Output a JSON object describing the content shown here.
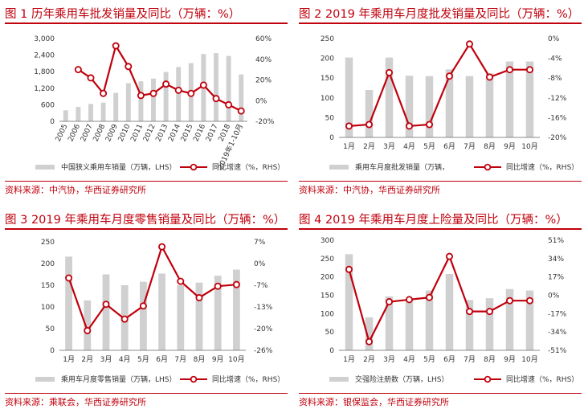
{
  "colors": {
    "accent": "#c0000c",
    "bar": "#d0d0d0",
    "line": "#c0000c",
    "text": "#333333"
  },
  "chart_data": [
    {
      "type": "bar",
      "title": "图 1 历年乘用车批发销量及同比（万辆：%）",
      "source": "资料来源：中汽协，华西证券研究所",
      "categories": [
        "2005",
        "2006",
        "2007",
        "2008",
        "2009",
        "2010",
        "2011",
        "2012",
        "2013",
        "2014",
        "2015",
        "2016",
        "2017",
        "2018",
        "2019年1-10月"
      ],
      "y_left": {
        "min": 0,
        "max": 3000,
        "ticks": [
          "0",
          "600",
          "1,200",
          "1,800",
          "2,400",
          "3,000"
        ]
      },
      "y_right": {
        "min": -20,
        "max": 60,
        "ticks": [
          "-20%",
          "0%",
          "20%",
          "40%",
          "60%"
        ]
      },
      "series": [
        {
          "name": "中国狭义乘用车销量（万辆，LHS）",
          "kind": "bar",
          "axis": "left",
          "values": [
            400,
            520,
            630,
            680,
            1030,
            1380,
            1450,
            1550,
            1790,
            1970,
            2110,
            2440,
            2470,
            2370,
            1700
          ]
        },
        {
          "name": "同比增速（%，RHS）",
          "kind": "line",
          "axis": "right",
          "values": [
            null,
            30,
            22,
            7,
            53,
            33,
            5,
            7,
            16,
            10,
            7,
            15,
            2,
            -4,
            -10
          ]
        }
      ]
    },
    {
      "type": "bar",
      "title": "图 2 2019 年乘用车月度批发销量及同比（万辆：%）",
      "source": "资料来源：中汽协，华西证券研究所",
      "categories": [
        "1月",
        "2月",
        "3月",
        "4月",
        "5月",
        "6月",
        "7月",
        "8月",
        "9月",
        "10月"
      ],
      "y_left": {
        "min": 0,
        "max": 250,
        "ticks": [
          "0",
          "50",
          "100",
          "150",
          "200",
          "250"
        ]
      },
      "y_right": {
        "min": -20,
        "max": 0,
        "ticks": [
          "-20%",
          "-16%",
          "-12%",
          "-8%",
          "-4%",
          "0%"
        ]
      },
      "series": [
        {
          "name": "乘用车月度批发销量（万辆，",
          "kind": "bar",
          "axis": "left",
          "values": [
            202,
            120,
            202,
            156,
            155,
            172,
            155,
            162,
            192,
            192
          ]
        },
        {
          "name": "同比增速（%，RHS）",
          "kind": "line",
          "axis": "right",
          "values": [
            -17.7,
            -17.4,
            -6.9,
            -17.7,
            -17.4,
            -7.6,
            -1.1,
            -7.8,
            -6.3,
            -6.3
          ]
        }
      ]
    },
    {
      "type": "bar",
      "title": "图 3 2019 年乘用车月度零售销量及同比（万辆：%）",
      "source": "资料来源：乘联会，华西证券研究所",
      "categories": [
        "1月",
        "2月",
        "3月",
        "4月",
        "5月",
        "6月",
        "7月",
        "8月",
        "9月",
        "10月"
      ],
      "y_left": {
        "min": 0,
        "max": 250,
        "ticks": [
          "0",
          "50",
          "100",
          "150",
          "200",
          "250"
        ]
      },
      "y_right": {
        "min": -26,
        "max": 7,
        "ticks": [
          "-26%",
          "-20%",
          "-13%",
          "-7%",
          "0%",
          "7%"
        ]
      },
      "series": [
        {
          "name": "乘用车月度零售销量（万辆，LHS）",
          "kind": "bar",
          "axis": "left",
          "values": [
            216,
            115,
            175,
            150,
            158,
            177,
            150,
            156,
            172,
            186
          ]
        },
        {
          "name": "同比增速（%，RHS）",
          "kind": "line",
          "axis": "right",
          "values": [
            -4,
            -20,
            -12,
            -16.5,
            -12.5,
            5.5,
            -5,
            -10,
            -6.5,
            -6
          ]
        }
      ]
    },
    {
      "type": "bar",
      "title": "图 4 2019 年乘用车月度上险量及同比（万辆：%）",
      "source": "资料来源：银保监会，华西证券研究所",
      "categories": [
        "1月",
        "2月",
        "3月",
        "4月",
        "5月",
        "6月",
        "7月",
        "8月",
        "9月",
        "10月"
      ],
      "y_left": {
        "min": 0,
        "max": 300,
        "ticks": [
          "0",
          "50",
          "100",
          "150",
          "200",
          "250",
          "300"
        ]
      },
      "y_right": {
        "min": -51,
        "max": 51,
        "ticks": [
          "-51%",
          "-34%",
          "-17%",
          "0%",
          "17%",
          "34%",
          "51%"
        ]
      },
      "series": [
        {
          "name": "交强险注册数（万辆，LHS）",
          "kind": "bar",
          "axis": "left",
          "values": [
            262,
            90,
            147,
            137,
            163,
            208,
            137,
            142,
            167,
            163
          ]
        },
        {
          "name": "同比增速（%，RHS）",
          "kind": "line",
          "axis": "right",
          "values": [
            24,
            -43,
            -6,
            -4,
            -2,
            36,
            -15,
            -15,
            -5,
            -5
          ]
        }
      ]
    }
  ]
}
